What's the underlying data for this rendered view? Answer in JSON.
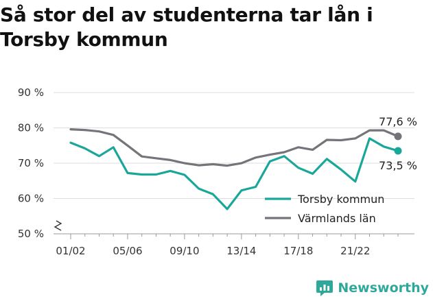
{
  "title": "Så stor del av studenterna tar lån i Torsby kommun",
  "brand": "Newsworthy",
  "colors": {
    "torsby": "#1aa79a",
    "varmland": "#75747a",
    "grid": "#dddddd",
    "brand": "#2fa89c"
  },
  "chart_data": {
    "type": "line",
    "title": "Så stor del av studenterna tar lån i Torsby kommun",
    "xlabel": "",
    "ylabel": "",
    "x": [
      "01/02",
      "02/03",
      "03/04",
      "04/05",
      "05/06",
      "06/07",
      "07/08",
      "08/09",
      "09/10",
      "10/11",
      "11/12",
      "12/13",
      "13/14",
      "14/15",
      "15/16",
      "16/17",
      "17/18",
      "18/19",
      "19/20",
      "20/21",
      "21/22",
      "22/23",
      "23/24",
      "24/25"
    ],
    "x_tick_labels": [
      "01/02",
      "05/06",
      "09/10",
      "13/14",
      "17/18",
      "21/22"
    ],
    "y_ticks": [
      50,
      60,
      70,
      80,
      90
    ],
    "y_tick_labels": [
      "50 %",
      "60 %",
      "70 %",
      "80 %",
      "90 %"
    ],
    "ylim": [
      50,
      90
    ],
    "axis_break": true,
    "grid": true,
    "legend_position": "bottom-right",
    "series": [
      {
        "name": "Torsby kommun",
        "color": "#1aa79a",
        "values": [
          75.8,
          74.2,
          72.0,
          74.5,
          67.2,
          66.8,
          66.8,
          67.8,
          66.7,
          62.8,
          61.2,
          57.0,
          62.3,
          63.3,
          70.5,
          72.0,
          68.7,
          67.0,
          71.2,
          68.2,
          64.8,
          77.0,
          74.7,
          73.5
        ],
        "end_label": "73,5 %"
      },
      {
        "name": "Värmlands län",
        "color": "#75747a",
        "values": [
          79.6,
          79.4,
          79.0,
          78.0,
          75.0,
          71.9,
          71.4,
          70.9,
          70.0,
          69.4,
          69.7,
          69.3,
          70.0,
          71.6,
          72.4,
          73.1,
          74.5,
          73.8,
          76.6,
          76.5,
          77.0,
          79.3,
          79.3,
          77.6
        ],
        "end_label": "77,6 %"
      }
    ]
  }
}
